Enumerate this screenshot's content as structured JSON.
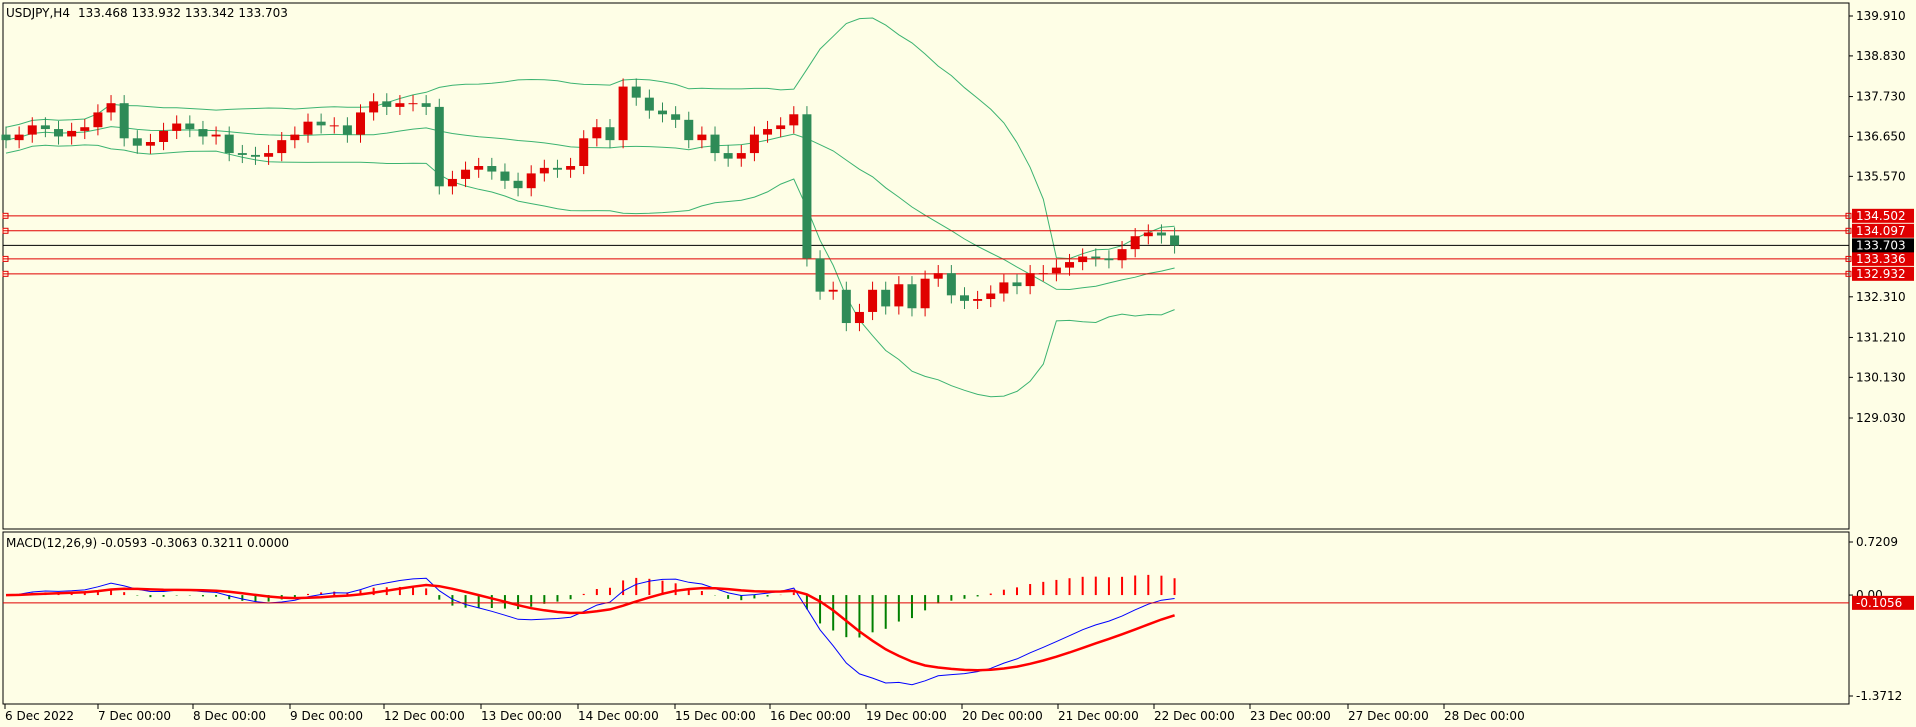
{
  "header": {
    "symbol_label": "USDJPY,H4",
    "ohlc_label": "133.468 133.932 133.342 133.703"
  },
  "macd_header": {
    "label": "MACD(12,26,9) -0.0593 -0.3063 0.3211 0.0000"
  },
  "colors": {
    "background": "#fefee6",
    "bull": "#e00000",
    "bear": "#2e8b57",
    "bands": "#3cb371",
    "level_line": "#e00000",
    "price_line": "#000000",
    "macd_line": "#0000ff",
    "signal_line": "#ff0000",
    "hist_pos": "#ff0000",
    "hist_neg": "#008000"
  },
  "chart_data": [
    {
      "type": "candlestick",
      "instrument": "USDJPY",
      "timeframe": "H4",
      "title": "USDJPY,H4",
      "ylim": [
        128.7,
        140.2
      ],
      "y_ticks": [
        "139.910",
        "138.830",
        "137.730",
        "136.650",
        "135.570",
        "132.310",
        "131.210",
        "130.130",
        "129.030"
      ],
      "x_ticks": [
        "6 Dec 2022",
        "7 Dec 00:00",
        "8 Dec 00:00",
        "9 Dec 00:00",
        "12 Dec 00:00",
        "13 Dec 00:00",
        "14 Dec 00:00",
        "15 Dec 00:00",
        "16 Dec 00:00",
        "19 Dec 00:00",
        "20 Dec 00:00",
        "21 Dec 00:00",
        "22 Dec 00:00",
        "23 Dec 00:00",
        "27 Dec 00:00",
        "28 Dec 00:00"
      ],
      "current_price": "133.703",
      "horizontal_levels": [
        "134.502",
        "134.097",
        "133.336",
        "132.932"
      ],
      "closes": [
        136.55,
        136.7,
        136.95,
        136.85,
        136.65,
        136.8,
        136.9,
        137.3,
        137.55,
        136.6,
        136.4,
        136.5,
        136.8,
        137.0,
        136.85,
        136.65,
        136.7,
        136.2,
        136.15,
        136.1,
        136.2,
        136.55,
        136.7,
        137.05,
        136.95,
        136.95,
        136.7,
        137.3,
        137.6,
        137.45,
        137.55,
        137.55,
        137.45,
        135.3,
        135.5,
        135.75,
        135.85,
        135.7,
        135.45,
        135.25,
        135.65,
        135.8,
        135.75,
        135.85,
        136.6,
        136.9,
        136.55,
        138.0,
        137.7,
        137.35,
        137.25,
        137.1,
        136.55,
        136.7,
        136.2,
        136.05,
        136.2,
        136.7,
        136.85,
        136.95,
        137.25,
        133.35,
        132.45,
        132.5,
        131.6,
        131.9,
        132.5,
        132.05,
        132.65,
        132.0,
        132.8,
        132.95,
        132.35,
        132.2,
        132.25,
        132.4,
        132.7,
        132.6,
        132.95,
        132.95,
        133.1,
        133.25,
        133.4,
        133.35,
        133.3,
        133.6,
        133.95,
        134.05,
        133.97,
        133.7
      ],
      "bollinger": {
        "period": 20
      },
      "indicator": {
        "type": "macd",
        "params": [
          12,
          26,
          9
        ],
        "values": {
          "main": "-0.0593",
          "signal": "-0.3063",
          "histogram": "0.3211",
          "extra": "0.0000"
        },
        "y_ticks": [
          "0.7209",
          "0.00",
          "-1.3712"
        ],
        "current_level": "-0.1056"
      }
    }
  ]
}
